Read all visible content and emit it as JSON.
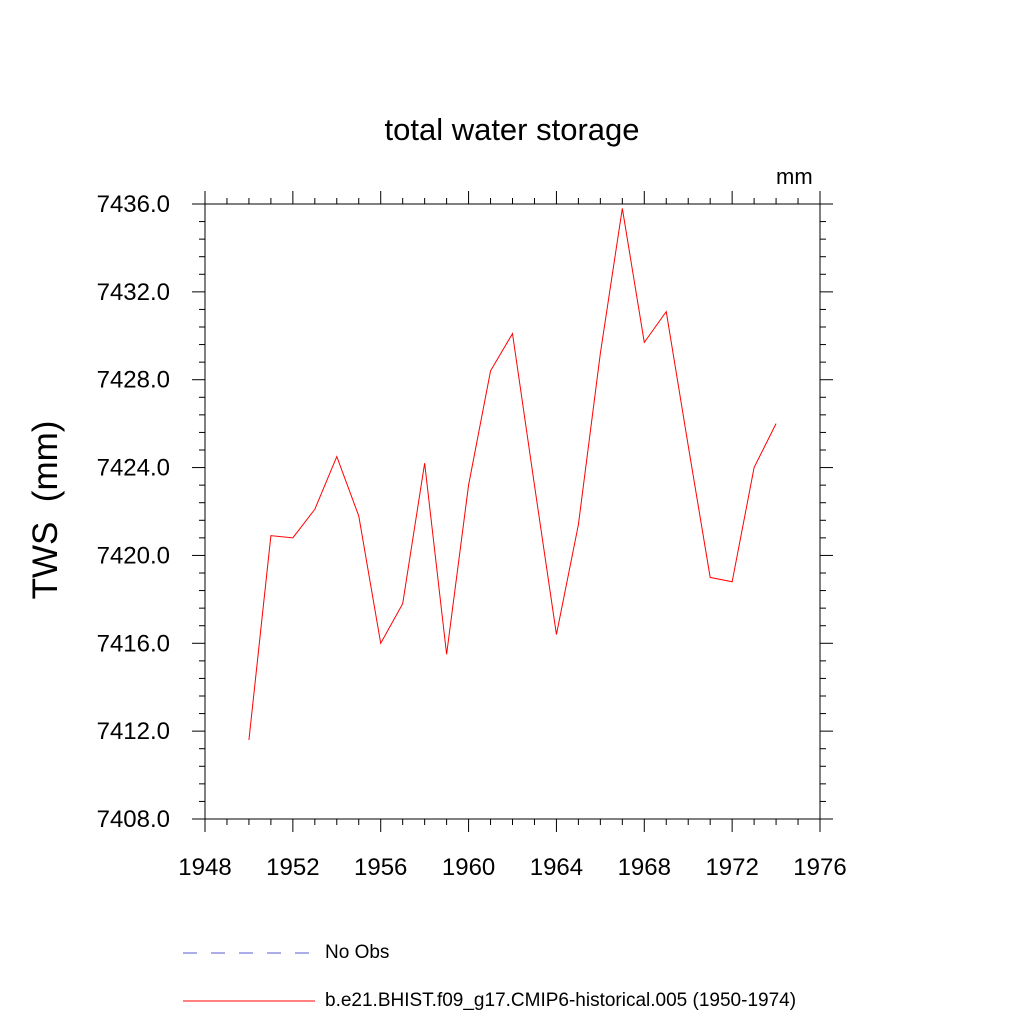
{
  "chart_data": {
    "type": "line",
    "title": "total water storage",
    "units_label": "mm",
    "ylabel": "TWS  (mm)",
    "xlabel": "",
    "xlim": [
      1948,
      1976
    ],
    "ylim": [
      7408,
      7436
    ],
    "x_ticks": [
      1948,
      1952,
      1956,
      1960,
      1964,
      1968,
      1972,
      1976
    ],
    "x_tick_labels": [
      "1948",
      "1952",
      "1956",
      "1960",
      "1964",
      "1968",
      "1972",
      "1976"
    ],
    "y_ticks": [
      7408,
      7412,
      7416,
      7420,
      7424,
      7428,
      7432,
      7436
    ],
    "y_tick_labels": [
      "7408.0",
      "7412.0",
      "7416.0",
      "7420.0",
      "7424.0",
      "7428.0",
      "7432.0",
      "7436.0"
    ],
    "series": [
      {
        "name": "b.e21.BHIST.f09_g17.CMIP6-historical.005 (1950-1974)",
        "color": "#ff0000",
        "x": [
          1950,
          1951,
          1952,
          1953,
          1954,
          1955,
          1956,
          1957,
          1958,
          1959,
          1960,
          1961,
          1962,
          1963,
          1964,
          1965,
          1966,
          1967,
          1968,
          1969,
          1970,
          1971,
          1972,
          1973,
          1974
        ],
        "y": [
          7411.6,
          7420.9,
          7420.8,
          7422.1,
          7424.5,
          7421.8,
          7416.0,
          7417.8,
          7424.2,
          7415.5,
          7423.2,
          7428.4,
          7430.1,
          7423.2,
          7416.4,
          7421.4,
          7429.2,
          7435.8,
          7429.7,
          7431.1,
          7425.0,
          7419.0,
          7418.8,
          7424.0,
          7426.0
        ]
      }
    ],
    "legend": [
      {
        "label": "No Obs",
        "style": "dashed",
        "color": "#5a5ad2"
      },
      {
        "label": "b.e21.BHIST.f09_g17.CMIP6-historical.005 (1950-1974)",
        "style": "solid",
        "color": "#ff0000"
      }
    ]
  }
}
